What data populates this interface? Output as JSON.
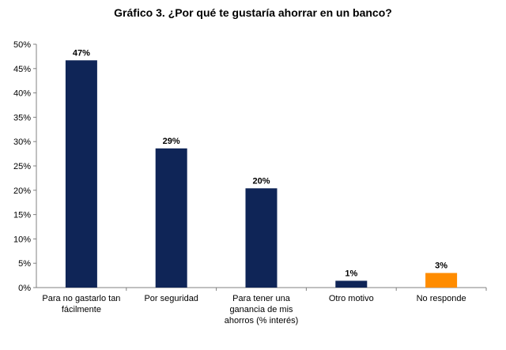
{
  "chart_data": {
    "type": "bar",
    "title": "Gráfico 3. ¿Por qué te gustaría ahorrar en un banco?",
    "categories": [
      [
        "Para no gastarlo tan",
        "fácilmente"
      ],
      [
        "Por seguridad"
      ],
      [
        "Para tener una",
        "ganancia de mis",
        "ahorros (% interés)"
      ],
      [
        "Otro motivo"
      ],
      [
        "No responde"
      ]
    ],
    "values": [
      46.7,
      28.6,
      20.4,
      1.4,
      3.0
    ],
    "data_labels": [
      "47%",
      "29%",
      "20%",
      "1%",
      "3%"
    ],
    "ylim": [
      0,
      50
    ],
    "yticks": [
      "0%",
      "5%",
      "10%",
      "15%",
      "20%",
      "25%",
      "30%",
      "35%",
      "40%",
      "45%",
      "50%"
    ],
    "grid": false,
    "colors": [
      "#0f2557",
      "#0f2557",
      "#0f2557",
      "#0f2557",
      "#ff8c00"
    ]
  }
}
